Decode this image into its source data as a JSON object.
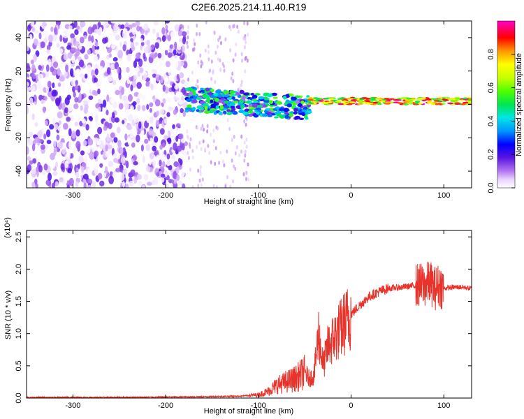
{
  "figure_title": "C2E6.2025.214.11.40.R19",
  "chart_data": [
    {
      "type": "heatmap",
      "xlabel": "Height of straight line (km)",
      "ylabel": "Frequency (Hz)",
      "xlim": [
        -350,
        130
      ],
      "ylim": [
        -50,
        50
      ],
      "xticks": [
        -300,
        -200,
        -100,
        0,
        100
      ],
      "yticks": [
        -40,
        -20,
        0,
        20,
        40
      ],
      "colorbar": {
        "label": "Normalized spectral amplitude",
        "range": [
          0,
          1
        ],
        "ticks": [
          "0.0",
          "0.2",
          "0.4",
          "0.6",
          "0.8"
        ],
        "tick_values": [
          0.0,
          0.2,
          0.4,
          0.6,
          0.8
        ],
        "colormap": "rainbow (white-violet-blue-cyan-green-yellow-red-magenta)"
      },
      "regions": [
        {
          "x_range": [
            -350,
            -178
          ],
          "description": "broadband noise",
          "amplitude_range": [
            0.0,
            0.2
          ]
        },
        {
          "x_range": [
            -178,
            -45
          ],
          "center_freq_hz": 0,
          "band_width_hz": 14,
          "amplitude_range": [
            0.1,
            0.6
          ]
        },
        {
          "x_range": [
            -45,
            130
          ],
          "center_freq_hz": 2,
          "band_width_hz": 4,
          "amplitude_range": [
            0.5,
            1.0
          ]
        }
      ]
    },
    {
      "type": "line",
      "xlabel": "Height of straight line (km)",
      "ylabel": "SNR (10 * v/v)",
      "y_multiplier": "(x10⁴)",
      "xlim": [
        -350,
        130
      ],
      "ylim": [
        0,
        2.6
      ],
      "xticks": [
        -300,
        -200,
        -100,
        0,
        100
      ],
      "yticks": [
        "0.0",
        "0.5",
        "1.0",
        "1.5",
        "2.0",
        "2.5"
      ],
      "ytick_values": [
        0,
        0.5,
        1.0,
        1.5,
        2.0,
        2.5
      ],
      "series": [
        {
          "color": "#e8332b",
          "points": [
            [
              -350,
              0.01
            ],
            [
              -250,
              0.01
            ],
            [
              -160,
              0.02
            ],
            [
              -120,
              0.03
            ],
            [
              -100,
              0.05
            ],
            [
              -90,
              0.1
            ],
            [
              -80,
              0.2
            ],
            [
              -70,
              0.25
            ],
            [
              -60,
              0.3
            ],
            [
              -50,
              0.4
            ],
            [
              -45,
              0.3
            ],
            [
              -40,
              0.35
            ],
            [
              -35,
              1.0
            ],
            [
              -30,
              0.5
            ],
            [
              -25,
              0.8
            ],
            [
              -20,
              0.9
            ],
            [
              -15,
              1.0
            ],
            [
              -10,
              1.1
            ],
            [
              -5,
              1.2
            ],
            [
              0,
              1.3
            ],
            [
              10,
              1.45
            ],
            [
              20,
              1.58
            ],
            [
              30,
              1.65
            ],
            [
              40,
              1.7
            ],
            [
              55,
              1.72
            ],
            [
              70,
              1.75
            ],
            [
              80,
              1.75
            ],
            [
              85,
              1.8
            ],
            [
              90,
              1.7
            ],
            [
              95,
              1.75
            ],
            [
              100,
              1.7
            ],
            [
              110,
              1.72
            ],
            [
              120,
              1.72
            ],
            [
              130,
              1.7
            ]
          ]
        }
      ]
    }
  ]
}
